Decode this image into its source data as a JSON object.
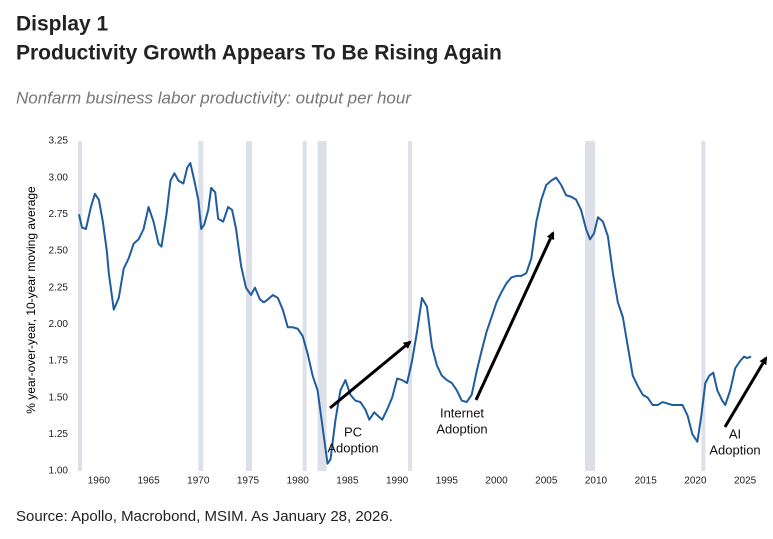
{
  "chart_data": {
    "type": "line",
    "title_lines": [
      "Display 1",
      "Productivity Growth Appears To Be Rising Again"
    ],
    "subtitle": "Nonfarm business labor productivity: output per hour",
    "y_label": "% year-over-year, 10-year moving average",
    "source": "Source: Apollo, Macrobond, MSIM. As January 28, 2026.",
    "color": "#1f5c9e",
    "band_color": "#dde0e8",
    "xlim": [
      1957.6,
      2027
    ],
    "ylim": [
      1,
      3.25
    ],
    "xticks": [
      1960,
      1965,
      1970,
      1975,
      1980,
      1985,
      1990,
      1995,
      2000,
      2005,
      2010,
      2015,
      2020,
      2025
    ],
    "yticks": [
      {
        "value": 1,
        "label": "1.00"
      },
      1.25,
      {
        "value": 1.5,
        "label": "1.50"
      },
      1.75,
      {
        "value": 2,
        "label": "2.00"
      },
      2.25,
      {
        "value": 2.5,
        "label": "2.50"
      },
      2.75,
      {
        "value": 3,
        "label": "3.00"
      },
      3.25
    ],
    "shaded_periods": [
      [
        1957.9,
        1958.3
      ],
      [
        1970.0,
        1970.5
      ],
      [
        1974.8,
        1975.4
      ],
      [
        1980.5,
        1980.9
      ],
      [
        1982.0,
        1982.9
      ],
      [
        1991.1,
        1991.5
      ],
      [
        2008.9,
        2009.9
      ],
      [
        2020.6,
        2021.0
      ]
    ],
    "annotations": [
      {
        "lines": [
          "PC",
          "Adoption"
        ]
      },
      {
        "lines": [
          "Internet",
          "Adoption"
        ]
      },
      {
        "lines": [
          "AI",
          "Adoption"
        ]
      }
    ],
    "x": [
      1958.0,
      1958.3,
      1958.7,
      1959.2,
      1959.6,
      1960.0,
      1960.4,
      1960.8,
      1961.0,
      1961.5,
      1962.0,
      1962.5,
      1963.0,
      1963.5,
      1964.0,
      1964.5,
      1965.0,
      1965.5,
      1966.0,
      1966.3,
      1966.8,
      1967.2,
      1967.6,
      1968.0,
      1968.5,
      1968.9,
      1969.2,
      1969.6,
      1970.0,
      1970.3,
      1970.6,
      1971.0,
      1971.3,
      1971.7,
      1972.0,
      1972.5,
      1973.0,
      1973.4,
      1973.8,
      1974.3,
      1974.8,
      1975.3,
      1975.7,
      1976.2,
      1976.6,
      1977.0,
      1977.5,
      1978.0,
      1978.5,
      1979.0,
      1979.5,
      1980.0,
      1980.5,
      1981.0,
      1981.5,
      1982.0,
      1982.5,
      1983.0,
      1983.3,
      1983.8,
      1984.3,
      1984.8,
      1985.3,
      1985.8,
      1986.3,
      1986.8,
      1987.2,
      1987.7,
      1988.0,
      1988.5,
      1989.0,
      1989.5,
      1990.0,
      1990.5,
      1991.0,
      1991.5,
      1992.0,
      1992.5,
      1993.0,
      1993.5,
      1994.0,
      1994.5,
      1995.0,
      1995.5,
      1996.0,
      1996.5,
      1997.0,
      1997.5,
      1998.0,
      1998.5,
      1999.0,
      1999.5,
      2000.0,
      2000.5,
      2001.0,
      2001.5,
      2002.0,
      2002.5,
      2003.0,
      2003.5,
      2004.0,
      2004.5,
      2005.0,
      2005.5,
      2006.0,
      2006.5,
      2007.0,
      2007.5,
      2008.0,
      2008.5,
      2009.0,
      2009.4,
      2009.8,
      2010.2,
      2010.7,
      2011.2,
      2011.7,
      2012.2,
      2012.7,
      2013.2,
      2013.7,
      2014.2,
      2014.7,
      2015.2,
      2015.7,
      2016.2,
      2016.7,
      2017.2,
      2017.7,
      2018.2,
      2018.7,
      2019.2,
      2019.7,
      2020.2,
      2020.6,
      2021.0,
      2021.4,
      2021.8,
      2022.2,
      2022.7,
      2023.0,
      2023.5,
      2024.0,
      2024.5,
      2024.9,
      2025.2,
      2025.6
    ],
    "values": [
      2.75,
      2.66,
      2.65,
      2.8,
      2.89,
      2.85,
      2.7,
      2.5,
      2.35,
      2.1,
      2.18,
      2.38,
      2.45,
      2.55,
      2.58,
      2.65,
      2.8,
      2.7,
      2.55,
      2.53,
      2.75,
      2.98,
      3.03,
      2.98,
      2.96,
      3.07,
      3.1,
      2.98,
      2.85,
      2.65,
      2.68,
      2.78,
      2.93,
      2.9,
      2.72,
      2.7,
      2.8,
      2.78,
      2.65,
      2.4,
      2.25,
      2.2,
      2.25,
      2.17,
      2.15,
      2.17,
      2.2,
      2.18,
      2.1,
      1.98,
      1.98,
      1.97,
      1.92,
      1.8,
      1.65,
      1.55,
      1.3,
      1.05,
      1.08,
      1.35,
      1.55,
      1.62,
      1.52,
      1.48,
      1.47,
      1.42,
      1.35,
      1.4,
      1.38,
      1.35,
      1.42,
      1.5,
      1.63,
      1.62,
      1.6,
      1.75,
      1.95,
      2.18,
      2.12,
      1.85,
      1.72,
      1.65,
      1.62,
      1.6,
      1.55,
      1.48,
      1.47,
      1.52,
      1.68,
      1.82,
      1.95,
      2.05,
      2.15,
      2.22,
      2.28,
      2.32,
      2.33,
      2.33,
      2.35,
      2.45,
      2.7,
      2.85,
      2.95,
      2.98,
      3.0,
      2.95,
      2.88,
      2.87,
      2.85,
      2.78,
      2.65,
      2.58,
      2.62,
      2.73,
      2.7,
      2.6,
      2.35,
      2.15,
      2.05,
      1.85,
      1.65,
      1.58,
      1.52,
      1.5,
      1.45,
      1.45,
      1.47,
      1.46,
      1.45,
      1.45,
      1.45,
      1.38,
      1.25,
      1.2,
      1.38,
      1.6,
      1.65,
      1.67,
      1.55,
      1.48,
      1.45,
      1.55,
      1.7,
      1.75,
      1.78,
      1.77,
      1.78
    ]
  }
}
